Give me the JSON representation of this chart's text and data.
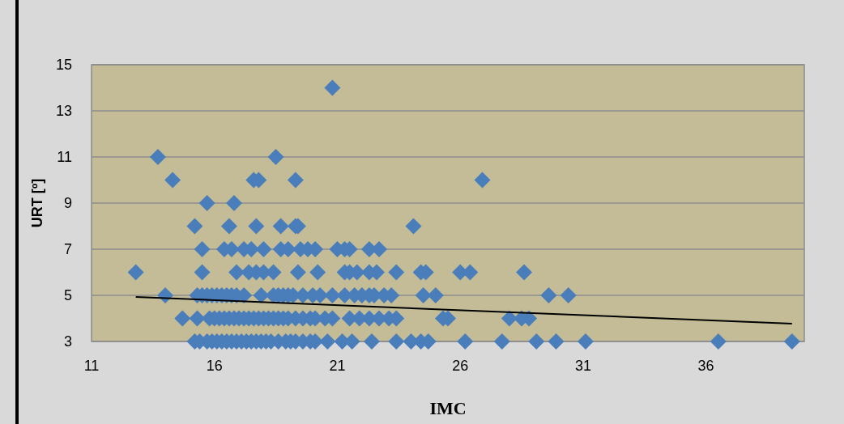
{
  "chart_data": {
    "type": "scatter",
    "xlabel": "IMC",
    "ylabel": "URT [º]",
    "xlim": [
      11,
      40
    ],
    "ylim": [
      3,
      15
    ],
    "xticks": [
      11,
      16,
      21,
      26,
      31,
      36
    ],
    "yticks": [
      3,
      5,
      7,
      9,
      11,
      13,
      15
    ],
    "grid": "y",
    "marker": "diamond",
    "series": [
      {
        "color": "#4a7ebb",
        "x": [
          15.2,
          15.4,
          15.7,
          15.9,
          16.1,
          16.3,
          16.5,
          16.7,
          16.9,
          17.1,
          17.3,
          17.5,
          17.7,
          17.9,
          18.1,
          18.3,
          18.6,
          18.9,
          19.1,
          19.3,
          19.6,
          19.9,
          20.1,
          20.6,
          21.2,
          21.6,
          22.4,
          23.4,
          24.0,
          24.4,
          24.7,
          26.2,
          27.7,
          29.1,
          29.9,
          31.1,
          36.5,
          39.5,
          14.7,
          15.3,
          15.8,
          16.0,
          16.2,
          16.4,
          16.6,
          16.8,
          17.0,
          17.2,
          17.4,
          17.6,
          17.8,
          18.0,
          18.2,
          18.4,
          18.6,
          18.8,
          19.0,
          19.3,
          19.6,
          19.9,
          20.1,
          20.5,
          20.8,
          21.5,
          21.9,
          22.3,
          22.7,
          23.1,
          23.4,
          25.3,
          25.5,
          28.0,
          28.5,
          28.8,
          14.0,
          15.3,
          15.5,
          15.7,
          15.9,
          16.1,
          16.3,
          16.5,
          16.7,
          16.9,
          17.2,
          17.9,
          18.4,
          18.6,
          18.8,
          19.0,
          19.2,
          19.6,
          20.0,
          20.3,
          20.8,
          21.3,
          21.7,
          22.0,
          22.3,
          22.5,
          22.9,
          23.2,
          24.5,
          25.0,
          29.6,
          30.4,
          12.8,
          15.5,
          16.9,
          17.4,
          17.7,
          18.0,
          18.4,
          19.4,
          20.2,
          21.3,
          21.5,
          21.8,
          22.3,
          22.6,
          23.4,
          24.4,
          24.6,
          26.0,
          26.4,
          28.6,
          15.5,
          16.4,
          16.7,
          17.2,
          17.5,
          18.0,
          18.7,
          19.0,
          19.5,
          19.8,
          20.1,
          21.0,
          21.3,
          21.5,
          22.3,
          22.7,
          15.2,
          16.6,
          17.7,
          18.7,
          19.3,
          19.4,
          24.1,
          15.7,
          16.8,
          14.3,
          17.6,
          17.8,
          19.3,
          26.9,
          13.7,
          18.5,
          20.8
        ],
        "values": [
          3,
          3,
          3,
          3,
          3,
          3,
          3,
          3,
          3,
          3,
          3,
          3,
          3,
          3,
          3,
          3,
          3,
          3,
          3,
          3,
          3,
          3,
          3,
          3,
          3,
          3,
          3,
          3,
          3,
          3,
          3,
          3,
          3,
          3,
          3,
          3,
          3,
          3,
          4,
          4,
          4,
          4,
          4,
          4,
          4,
          4,
          4,
          4,
          4,
          4,
          4,
          4,
          4,
          4,
          4,
          4,
          4,
          4,
          4,
          4,
          4,
          4,
          4,
          4,
          4,
          4,
          4,
          4,
          4,
          4,
          4,
          4,
          4,
          4,
          5,
          5,
          5,
          5,
          5,
          5,
          5,
          5,
          5,
          5,
          5,
          5,
          5,
          5,
          5,
          5,
          5,
          5,
          5,
          5,
          5,
          5,
          5,
          5,
          5,
          5,
          5,
          5,
          5,
          5,
          5,
          5,
          6,
          6,
          6,
          6,
          6,
          6,
          6,
          6,
          6,
          6,
          6,
          6,
          6,
          6,
          6,
          6,
          6,
          6,
          6,
          6,
          7,
          7,
          7,
          7,
          7,
          7,
          7,
          7,
          7,
          7,
          7,
          7,
          7,
          7,
          7,
          7,
          8,
          8,
          8,
          8,
          8,
          8,
          8,
          9,
          9,
          10,
          10,
          10,
          10,
          10,
          11,
          11,
          14
        ]
      },
      {
        "type": "line",
        "color": "#000000",
        "line_style": "solid",
        "marker": "none",
        "x": [
          12.8,
          39.5
        ],
        "values": [
          4.93,
          3.77
        ]
      }
    ]
  }
}
